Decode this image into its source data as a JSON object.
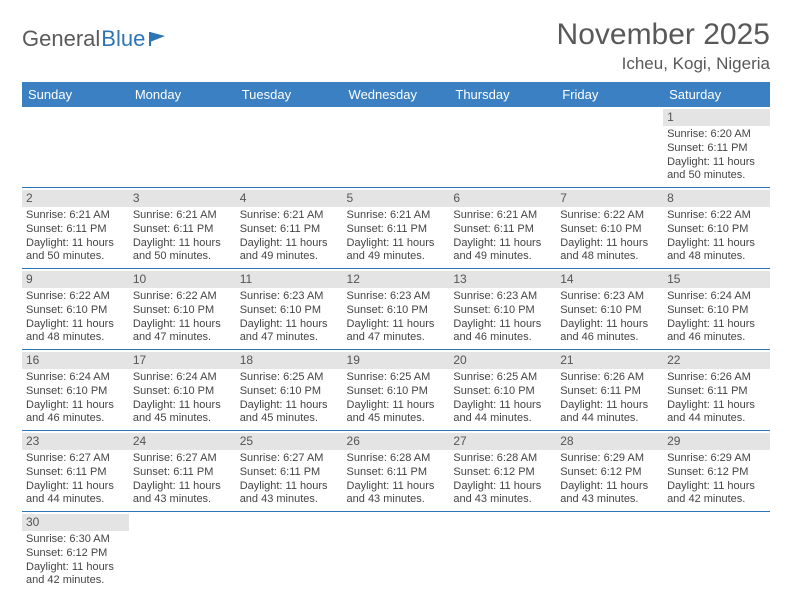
{
  "logo": {
    "text1": "General",
    "text2": "Blue",
    "accent_color": "#2e75b6"
  },
  "header": {
    "month": "November 2025",
    "location": "Icheu, Kogi, Nigeria"
  },
  "colors": {
    "header_bg": "#3a80c3",
    "header_text": "#ffffff",
    "border": "#2e75b6",
    "daynum_bg": "#e4e4e4",
    "text": "#444444"
  },
  "days_of_week": [
    "Sunday",
    "Monday",
    "Tuesday",
    "Wednesday",
    "Thursday",
    "Friday",
    "Saturday"
  ],
  "weeks": [
    [
      null,
      null,
      null,
      null,
      null,
      null,
      {
        "n": "1",
        "sr": "Sunrise: 6:20 AM",
        "ss": "Sunset: 6:11 PM",
        "dl": "Daylight: 11 hours and 50 minutes."
      }
    ],
    [
      {
        "n": "2",
        "sr": "Sunrise: 6:21 AM",
        "ss": "Sunset: 6:11 PM",
        "dl": "Daylight: 11 hours and 50 minutes."
      },
      {
        "n": "3",
        "sr": "Sunrise: 6:21 AM",
        "ss": "Sunset: 6:11 PM",
        "dl": "Daylight: 11 hours and 50 minutes."
      },
      {
        "n": "4",
        "sr": "Sunrise: 6:21 AM",
        "ss": "Sunset: 6:11 PM",
        "dl": "Daylight: 11 hours and 49 minutes."
      },
      {
        "n": "5",
        "sr": "Sunrise: 6:21 AM",
        "ss": "Sunset: 6:11 PM",
        "dl": "Daylight: 11 hours and 49 minutes."
      },
      {
        "n": "6",
        "sr": "Sunrise: 6:21 AM",
        "ss": "Sunset: 6:11 PM",
        "dl": "Daylight: 11 hours and 49 minutes."
      },
      {
        "n": "7",
        "sr": "Sunrise: 6:22 AM",
        "ss": "Sunset: 6:10 PM",
        "dl": "Daylight: 11 hours and 48 minutes."
      },
      {
        "n": "8",
        "sr": "Sunrise: 6:22 AM",
        "ss": "Sunset: 6:10 PM",
        "dl": "Daylight: 11 hours and 48 minutes."
      }
    ],
    [
      {
        "n": "9",
        "sr": "Sunrise: 6:22 AM",
        "ss": "Sunset: 6:10 PM",
        "dl": "Daylight: 11 hours and 48 minutes."
      },
      {
        "n": "10",
        "sr": "Sunrise: 6:22 AM",
        "ss": "Sunset: 6:10 PM",
        "dl": "Daylight: 11 hours and 47 minutes."
      },
      {
        "n": "11",
        "sr": "Sunrise: 6:23 AM",
        "ss": "Sunset: 6:10 PM",
        "dl": "Daylight: 11 hours and 47 minutes."
      },
      {
        "n": "12",
        "sr": "Sunrise: 6:23 AM",
        "ss": "Sunset: 6:10 PM",
        "dl": "Daylight: 11 hours and 47 minutes."
      },
      {
        "n": "13",
        "sr": "Sunrise: 6:23 AM",
        "ss": "Sunset: 6:10 PM",
        "dl": "Daylight: 11 hours and 46 minutes."
      },
      {
        "n": "14",
        "sr": "Sunrise: 6:23 AM",
        "ss": "Sunset: 6:10 PM",
        "dl": "Daylight: 11 hours and 46 minutes."
      },
      {
        "n": "15",
        "sr": "Sunrise: 6:24 AM",
        "ss": "Sunset: 6:10 PM",
        "dl": "Daylight: 11 hours and 46 minutes."
      }
    ],
    [
      {
        "n": "16",
        "sr": "Sunrise: 6:24 AM",
        "ss": "Sunset: 6:10 PM",
        "dl": "Daylight: 11 hours and 46 minutes."
      },
      {
        "n": "17",
        "sr": "Sunrise: 6:24 AM",
        "ss": "Sunset: 6:10 PM",
        "dl": "Daylight: 11 hours and 45 minutes."
      },
      {
        "n": "18",
        "sr": "Sunrise: 6:25 AM",
        "ss": "Sunset: 6:10 PM",
        "dl": "Daylight: 11 hours and 45 minutes."
      },
      {
        "n": "19",
        "sr": "Sunrise: 6:25 AM",
        "ss": "Sunset: 6:10 PM",
        "dl": "Daylight: 11 hours and 45 minutes."
      },
      {
        "n": "20",
        "sr": "Sunrise: 6:25 AM",
        "ss": "Sunset: 6:10 PM",
        "dl": "Daylight: 11 hours and 44 minutes."
      },
      {
        "n": "21",
        "sr": "Sunrise: 6:26 AM",
        "ss": "Sunset: 6:11 PM",
        "dl": "Daylight: 11 hours and 44 minutes."
      },
      {
        "n": "22",
        "sr": "Sunrise: 6:26 AM",
        "ss": "Sunset: 6:11 PM",
        "dl": "Daylight: 11 hours and 44 minutes."
      }
    ],
    [
      {
        "n": "23",
        "sr": "Sunrise: 6:27 AM",
        "ss": "Sunset: 6:11 PM",
        "dl": "Daylight: 11 hours and 44 minutes."
      },
      {
        "n": "24",
        "sr": "Sunrise: 6:27 AM",
        "ss": "Sunset: 6:11 PM",
        "dl": "Daylight: 11 hours and 43 minutes."
      },
      {
        "n": "25",
        "sr": "Sunrise: 6:27 AM",
        "ss": "Sunset: 6:11 PM",
        "dl": "Daylight: 11 hours and 43 minutes."
      },
      {
        "n": "26",
        "sr": "Sunrise: 6:28 AM",
        "ss": "Sunset: 6:11 PM",
        "dl": "Daylight: 11 hours and 43 minutes."
      },
      {
        "n": "27",
        "sr": "Sunrise: 6:28 AM",
        "ss": "Sunset: 6:12 PM",
        "dl": "Daylight: 11 hours and 43 minutes."
      },
      {
        "n": "28",
        "sr": "Sunrise: 6:29 AM",
        "ss": "Sunset: 6:12 PM",
        "dl": "Daylight: 11 hours and 43 minutes."
      },
      {
        "n": "29",
        "sr": "Sunrise: 6:29 AM",
        "ss": "Sunset: 6:12 PM",
        "dl": "Daylight: 11 hours and 42 minutes."
      }
    ],
    [
      {
        "n": "30",
        "sr": "Sunrise: 6:30 AM",
        "ss": "Sunset: 6:12 PM",
        "dl": "Daylight: 11 hours and 42 minutes."
      },
      null,
      null,
      null,
      null,
      null,
      null
    ]
  ]
}
